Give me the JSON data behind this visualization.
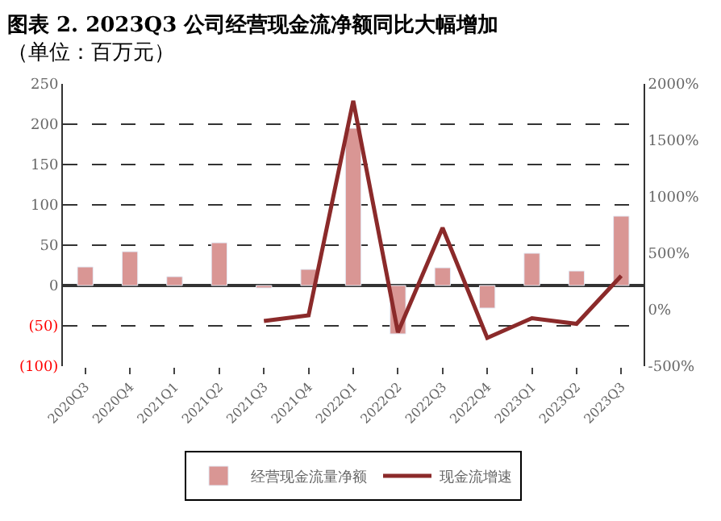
{
  "chart_data": {
    "type": "bar",
    "title": "图表 2. 2023Q3 公司经营现金流净额同比大幅增加",
    "subtitle": "（单位：百万元）",
    "categories": [
      "2020Q3",
      "2020Q4",
      "2021Q1",
      "2021Q2",
      "2021Q3",
      "2021Q4",
      "2022Q1",
      "2022Q2",
      "2022Q3",
      "2022Q4",
      "2023Q1",
      "2023Q2",
      "2023Q3"
    ],
    "series": [
      {
        "name": "经营现金流量净额",
        "color": "#d99694",
        "values": [
          23,
          42,
          11,
          53,
          -3,
          20,
          195,
          -60,
          22,
          -28,
          40,
          18,
          86
        ]
      },
      {
        "name": "现金流增速",
        "type": "line",
        "axis": "y2",
        "color": "#8b2a2a",
        "values": [
          null,
          null,
          null,
          null,
          -100,
          -50,
          1850,
          -200,
          725,
          -250,
          -75,
          -125,
          300
        ]
      }
    ],
    "ylim": [
      -100,
      250
    ],
    "yticks": [
      {
        "value": -100,
        "label": "(100)"
      },
      {
        "value": -50,
        "label": "(50)"
      },
      0,
      50,
      100,
      150,
      200,
      250
    ],
    "y2lim": [
      -500,
      2000
    ],
    "y2ticks": [
      {
        "value": -500,
        "label": "-500%"
      },
      {
        "value": 0,
        "label": "0%"
      },
      {
        "value": 500,
        "label": "500%"
      },
      {
        "value": 1000,
        "label": "1000%"
      },
      {
        "value": 1500,
        "label": "1500%"
      },
      {
        "value": 2000,
        "label": "2000%"
      }
    ],
    "grid": "y",
    "legend": "bottom",
    "line_style": "solid",
    "marker": "none"
  }
}
